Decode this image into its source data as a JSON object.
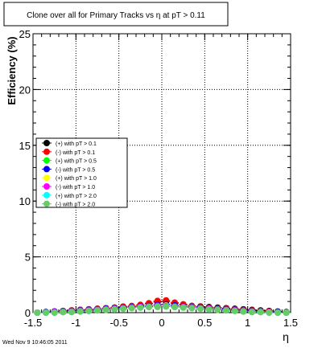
{
  "chart_data": {
    "type": "scatter",
    "title": "Clone  over all for Primary Tracks vs    η at pT > 0.11",
    "xlabel": "η",
    "ylabel": "Efficiency (%)",
    "xlim": [
      -1.5,
      1.5
    ],
    "ylim": [
      0,
      25
    ],
    "x_ticks": [
      -1.5,
      -1,
      -0.5,
      0,
      0.5,
      1,
      1.5
    ],
    "x_tick_labels": [
      "-1.5",
      "-1",
      "-0.5",
      "0",
      "0.5",
      "1",
      "1.5"
    ],
    "y_ticks": [
      0,
      5,
      10,
      15,
      20,
      25
    ],
    "y_tick_labels": [
      "0",
      "5",
      "10",
      "15",
      "20",
      "25"
    ],
    "grid": true,
    "legend_position": "left",
    "series": [
      {
        "name": "(+) with pT > 0.1",
        "color": "#000000",
        "x": [
          -1.45,
          -1.35,
          -1.25,
          -1.15,
          -1.05,
          -0.95,
          -0.85,
          -0.75,
          -0.65,
          -0.55,
          -0.45,
          -0.35,
          -0.25,
          -0.15,
          -0.05,
          0.05,
          0.15,
          0.25,
          0.35,
          0.45,
          0.55,
          0.65,
          0.75,
          0.85,
          0.95,
          1.05,
          1.15,
          1.25,
          1.35,
          1.45
        ],
        "values": [
          0.0,
          0.05,
          0.1,
          0.15,
          0.2,
          0.25,
          0.3,
          0.35,
          0.4,
          0.45,
          0.5,
          0.55,
          0.65,
          0.8,
          0.95,
          1.0,
          0.85,
          0.7,
          0.6,
          0.55,
          0.5,
          0.45,
          0.4,
          0.35,
          0.3,
          0.25,
          0.2,
          0.15,
          0.1,
          0.05
        ]
      },
      {
        "name": "(-) with pT > 0.1",
        "color": "#ff0000",
        "x": [
          -1.45,
          -1.35,
          -1.25,
          -1.15,
          -1.05,
          -0.95,
          -0.85,
          -0.75,
          -0.65,
          -0.55,
          -0.45,
          -0.35,
          -0.25,
          -0.15,
          -0.05,
          0.05,
          0.15,
          0.25,
          0.35,
          0.45,
          0.55,
          0.65,
          0.75,
          0.85,
          0.95,
          1.05,
          1.15,
          1.25,
          1.35,
          1.45
        ],
        "values": [
          0.0,
          0.05,
          0.1,
          0.15,
          0.2,
          0.25,
          0.3,
          0.35,
          0.4,
          0.45,
          0.55,
          0.6,
          0.7,
          0.85,
          1.05,
          1.1,
          0.9,
          0.75,
          0.6,
          0.5,
          0.45,
          0.4,
          0.35,
          0.3,
          0.25,
          0.2,
          0.15,
          0.1,
          0.05,
          0.0
        ]
      },
      {
        "name": "(+) with pT > 0.5",
        "color": "#00ff00",
        "x": [
          -1.45,
          -1.35,
          -1.25,
          -1.15,
          -1.05,
          -0.95,
          -0.85,
          -0.75,
          -0.65,
          -0.55,
          -0.45,
          -0.35,
          -0.25,
          -0.15,
          -0.05,
          0.05,
          0.15,
          0.25,
          0.35,
          0.45,
          0.55,
          0.65,
          0.75,
          0.85,
          0.95,
          1.05,
          1.15,
          1.25,
          1.35,
          1.45
        ],
        "values": [
          0.0,
          0.05,
          0.05,
          0.1,
          0.15,
          0.2,
          0.25,
          0.3,
          0.35,
          0.4,
          0.45,
          0.5,
          0.55,
          0.6,
          0.65,
          0.7,
          0.6,
          0.55,
          0.5,
          0.45,
          0.4,
          0.35,
          0.3,
          0.25,
          0.2,
          0.15,
          0.1,
          0.05,
          0.05,
          0.0
        ]
      },
      {
        "name": "(-) with pT > 0.5",
        "color": "#0000ff",
        "x": [
          -1.45,
          -1.35,
          -1.25,
          -1.15,
          -1.05,
          -0.95,
          -0.85,
          -0.75,
          -0.65,
          -0.55,
          -0.45,
          -0.35,
          -0.25,
          -0.15,
          -0.05,
          0.05,
          0.15,
          0.25,
          0.35,
          0.45,
          0.55,
          0.65,
          0.75,
          0.85,
          0.95,
          1.05,
          1.15,
          1.25,
          1.35,
          1.45
        ],
        "values": [
          0.0,
          0.05,
          0.1,
          0.1,
          0.15,
          0.2,
          0.25,
          0.3,
          0.35,
          0.4,
          0.45,
          0.5,
          0.55,
          0.6,
          0.7,
          0.75,
          0.65,
          0.55,
          0.5,
          0.45,
          0.4,
          0.35,
          0.3,
          0.25,
          0.2,
          0.15,
          0.1,
          0.05,
          0.05,
          0.0
        ]
      },
      {
        "name": "(+) with pT > 1.0",
        "color": "#ffff00",
        "x": [
          -1.45,
          -1.35,
          -1.25,
          -1.15,
          -1.05,
          -0.95,
          -0.85,
          -0.75,
          -0.65,
          -0.55,
          -0.45,
          -0.35,
          -0.25,
          -0.15,
          -0.05,
          0.05,
          0.15,
          0.25,
          0.35,
          0.45,
          0.55,
          0.65,
          0.75,
          0.85,
          0.95,
          1.05,
          1.15,
          1.25,
          1.35,
          1.45
        ],
        "values": [
          0.0,
          0.0,
          0.05,
          0.05,
          0.1,
          0.15,
          0.2,
          0.25,
          0.3,
          0.35,
          0.4,
          0.45,
          0.5,
          0.55,
          0.6,
          0.65,
          0.55,
          0.5,
          0.45,
          0.4,
          0.35,
          0.3,
          0.25,
          0.2,
          0.15,
          0.1,
          0.05,
          0.05,
          0.0,
          0.0
        ]
      },
      {
        "name": "(-) with pT > 1.0",
        "color": "#ff00ff",
        "x": [
          -1.45,
          -1.35,
          -1.25,
          -1.15,
          -1.05,
          -0.95,
          -0.85,
          -0.75,
          -0.65,
          -0.55,
          -0.45,
          -0.35,
          -0.25,
          -0.15,
          -0.05,
          0.05,
          0.15,
          0.25,
          0.35,
          0.45,
          0.55,
          0.65,
          0.75,
          0.85,
          0.95,
          1.05,
          1.15,
          1.25,
          1.35,
          1.45
        ],
        "values": [
          0.0,
          0.0,
          0.05,
          0.05,
          0.1,
          0.15,
          0.2,
          0.25,
          0.3,
          0.35,
          0.4,
          0.45,
          0.5,
          0.55,
          0.6,
          0.6,
          0.55,
          0.5,
          0.45,
          0.4,
          0.35,
          0.3,
          0.25,
          0.2,
          0.15,
          0.1,
          0.05,
          0.05,
          0.0,
          0.0
        ]
      },
      {
        "name": "(+) with pT > 2.0",
        "color": "#00ffff",
        "x": [
          -1.45,
          -1.35,
          -1.25,
          -1.15,
          -1.05,
          -0.95,
          -0.85,
          -0.75,
          -0.65,
          -0.55,
          -0.45,
          -0.35,
          -0.25,
          -0.15,
          -0.05,
          0.05,
          0.15,
          0.25,
          0.35,
          0.45,
          0.55,
          0.65,
          0.75,
          0.85,
          0.95,
          1.05,
          1.15,
          1.25,
          1.35,
          1.45
        ],
        "values": [
          0.0,
          0.0,
          0.0,
          0.05,
          0.05,
          0.1,
          0.15,
          0.2,
          0.25,
          0.3,
          0.35,
          0.4,
          0.45,
          0.5,
          0.55,
          0.55,
          0.5,
          0.45,
          0.4,
          0.35,
          0.3,
          0.25,
          0.2,
          0.15,
          0.1,
          0.05,
          0.05,
          0.0,
          0.0,
          0.0
        ]
      },
      {
        "name": "(-) with pT > 2.0",
        "color": "#66cc66",
        "x": [
          -1.45,
          -1.35,
          -1.25,
          -1.15,
          -1.05,
          -0.95,
          -0.85,
          -0.75,
          -0.65,
          -0.55,
          -0.45,
          -0.35,
          -0.25,
          -0.15,
          -0.05,
          0.05,
          0.15,
          0.25,
          0.35,
          0.45,
          0.55,
          0.65,
          0.75,
          0.85,
          0.95,
          1.05,
          1.15,
          1.25,
          1.35,
          1.45
        ],
        "values": [
          0.0,
          0.0,
          0.0,
          0.05,
          0.05,
          0.1,
          0.15,
          0.2,
          0.25,
          0.3,
          0.35,
          0.4,
          0.45,
          0.5,
          0.5,
          0.55,
          0.5,
          0.45,
          0.4,
          0.35,
          0.3,
          0.25,
          0.2,
          0.15,
          0.1,
          0.05,
          0.05,
          0.0,
          0.0,
          0.0
        ]
      }
    ]
  },
  "timestamp": "Wed Nov  9 10:46:05 2011"
}
